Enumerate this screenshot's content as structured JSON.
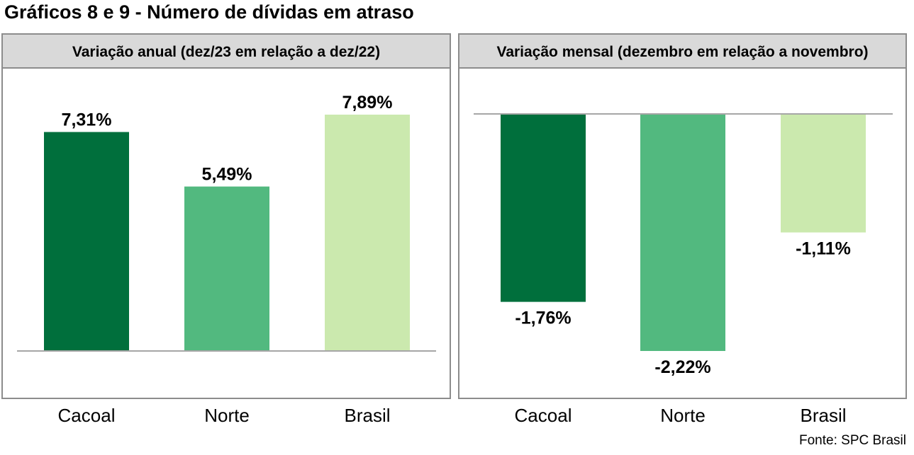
{
  "title": "Gráficos 8 e 9 - Número de dívidas em atraso",
  "source": "Fonte: SPC Brasil",
  "colors": {
    "cacoal": "#006f3c",
    "norte": "#52b97f",
    "brasil": "#cbe9ae",
    "header_bg": "#d9d9d9",
    "border": "#8c8c8c",
    "axis": "#a6a6a6"
  },
  "chart_data": [
    {
      "type": "bar",
      "title": "Variação anual (dez/23 em relação a dez/22)",
      "categories": [
        "Cacoal",
        "Norte",
        "Brasil"
      ],
      "values": [
        7.31,
        5.49,
        7.89
      ],
      "labels": [
        "7,31%",
        "5,49%",
        "7,89%"
      ],
      "xlabel": "",
      "ylabel": "",
      "ylim": [
        0,
        7.89
      ],
      "grid": false,
      "legend": "none"
    },
    {
      "type": "bar",
      "title": "Variação mensal (dezembro em relação a novembro)",
      "categories": [
        "Cacoal",
        "Norte",
        "Brasil"
      ],
      "values": [
        -1.76,
        -2.22,
        -1.11
      ],
      "labels": [
        "-1,76%",
        "-2,22%",
        "-1,11%"
      ],
      "xlabel": "",
      "ylabel": "",
      "ylim": [
        -2.22,
        0
      ],
      "grid": false,
      "legend": "none"
    }
  ]
}
